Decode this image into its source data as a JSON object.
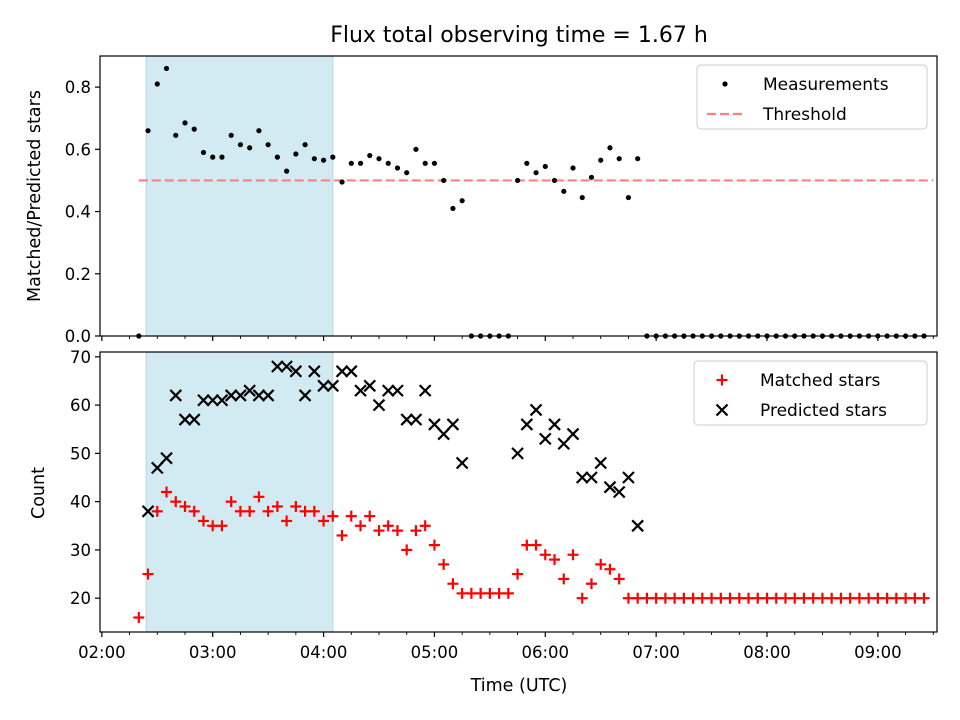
{
  "figure": {
    "title": "Flux total observing time = 1.67 h",
    "xlabel": "Time (UTC)"
  },
  "colors": {
    "measurement": "#000000",
    "threshold": "#ff7f7f",
    "matched": "#ff0000",
    "predicted": "#000000",
    "shading": "#add8e6"
  },
  "chart_data": [
    {
      "type": "scatter",
      "title": "Flux total observing time = 1.67 h",
      "xlabel": "",
      "ylabel": "Matched/Predicted stars",
      "xlim": [
        "02:00",
        "09:30"
      ],
      "ylim": [
        0,
        0.9
      ],
      "yticks": [
        "0.0",
        "0.2",
        "0.4",
        "0.6",
        "0.8"
      ],
      "xticks": [
        "02:00",
        "03:00",
        "04:00",
        "05:00",
        "06:00",
        "07:00",
        "08:00",
        "09:00"
      ],
      "shaded_interval": [
        "02:24",
        "04:05"
      ],
      "legend": {
        "placement": "upper right",
        "entries": [
          "Measurements",
          "Threshold"
        ]
      },
      "threshold": {
        "name": "Threshold",
        "value": 0.5,
        "x": [
          "02:20",
          "09:30"
        ]
      },
      "series": [
        {
          "name": "Measurements",
          "marker": "dot",
          "points": [
            [
              "02:20",
              0.0
            ],
            [
              "02:25",
              0.66
            ],
            [
              "02:30",
              0.81
            ],
            [
              "02:35",
              0.86
            ],
            [
              "02:40",
              0.645
            ],
            [
              "02:45",
              0.685
            ],
            [
              "02:50",
              0.665
            ],
            [
              "02:55",
              0.59
            ],
            [
              "03:00",
              0.575
            ],
            [
              "03:05",
              0.575
            ],
            [
              "03:10",
              0.645
            ],
            [
              "03:15",
              0.615
            ],
            [
              "03:20",
              0.605
            ],
            [
              "03:25",
              0.66
            ],
            [
              "03:30",
              0.615
            ],
            [
              "03:35",
              0.575
            ],
            [
              "03:40",
              0.53
            ],
            [
              "03:45",
              0.585
            ],
            [
              "03:50",
              0.615
            ],
            [
              "03:55",
              0.57
            ],
            [
              "04:00",
              0.565
            ],
            [
              "04:05",
              0.575
            ],
            [
              "04:10",
              0.495
            ],
            [
              "04:15",
              0.555
            ],
            [
              "04:20",
              0.555
            ],
            [
              "04:25",
              0.58
            ],
            [
              "04:30",
              0.57
            ],
            [
              "04:35",
              0.555
            ],
            [
              "04:40",
              0.54
            ],
            [
              "04:45",
              0.525
            ],
            [
              "04:50",
              0.6
            ],
            [
              "04:55",
              0.555
            ],
            [
              "05:00",
              0.555
            ],
            [
              "05:05",
              0.5
            ],
            [
              "05:10",
              0.41
            ],
            [
              "05:15",
              0.435
            ],
            [
              "05:20",
              0.0
            ],
            [
              "05:25",
              0.0
            ],
            [
              "05:30",
              0.0
            ],
            [
              "05:35",
              0.0
            ],
            [
              "05:40",
              0.0
            ],
            [
              "05:45",
              0.5
            ],
            [
              "05:50",
              0.555
            ],
            [
              "05:55",
              0.525
            ],
            [
              "06:00",
              0.545
            ],
            [
              "06:05",
              0.5
            ],
            [
              "06:10",
              0.465
            ],
            [
              "06:15",
              0.54
            ],
            [
              "06:20",
              0.445
            ],
            [
              "06:25",
              0.51
            ],
            [
              "06:30",
              0.565
            ],
            [
              "06:35",
              0.605
            ],
            [
              "06:40",
              0.57
            ],
            [
              "06:45",
              0.445
            ],
            [
              "06:50",
              0.57
            ],
            [
              "06:55",
              0.0
            ],
            [
              "07:00",
              0.0
            ],
            [
              "07:05",
              0.0
            ],
            [
              "07:10",
              0.0
            ],
            [
              "07:15",
              0.0
            ],
            [
              "07:20",
              0.0
            ],
            [
              "07:25",
              0.0
            ],
            [
              "07:30",
              0.0
            ],
            [
              "07:35",
              0.0
            ],
            [
              "07:40",
              0.0
            ],
            [
              "07:45",
              0.0
            ],
            [
              "07:50",
              0.0
            ],
            [
              "07:55",
              0.0
            ],
            [
              "08:00",
              0.0
            ],
            [
              "08:05",
              0.0
            ],
            [
              "08:10",
              0.0
            ],
            [
              "08:15",
              0.0
            ],
            [
              "08:20",
              0.0
            ],
            [
              "08:25",
              0.0
            ],
            [
              "08:30",
              0.0
            ],
            [
              "08:35",
              0.0
            ],
            [
              "08:40",
              0.0
            ],
            [
              "08:45",
              0.0
            ],
            [
              "08:50",
              0.0
            ],
            [
              "08:55",
              0.0
            ],
            [
              "09:00",
              0.0
            ],
            [
              "09:05",
              0.0
            ],
            [
              "09:10",
              0.0
            ],
            [
              "09:15",
              0.0
            ],
            [
              "09:20",
              0.0
            ],
            [
              "09:25",
              0.0
            ]
          ]
        }
      ]
    },
    {
      "type": "scatter",
      "title": "",
      "xlabel": "Time (UTC)",
      "ylabel": "Count",
      "xlim": [
        "02:00",
        "09:30"
      ],
      "ylim": [
        13,
        71
      ],
      "yticks": [
        "20",
        "30",
        "40",
        "50",
        "60",
        "70"
      ],
      "xticks": [
        "02:00",
        "03:00",
        "04:00",
        "05:00",
        "06:00",
        "07:00",
        "08:00",
        "09:00"
      ],
      "shaded_interval": [
        "02:24",
        "04:05"
      ],
      "legend": {
        "placement": "upper right",
        "entries": [
          "Matched stars",
          "Predicted stars"
        ]
      },
      "series": [
        {
          "name": "Matched stars",
          "marker": "plus",
          "points": [
            [
              "02:20",
              16
            ],
            [
              "02:25",
              25
            ],
            [
              "02:30",
              38
            ],
            [
              "02:35",
              42
            ],
            [
              "02:40",
              40
            ],
            [
              "02:45",
              39
            ],
            [
              "02:50",
              38
            ],
            [
              "02:55",
              36
            ],
            [
              "03:00",
              35
            ],
            [
              "03:05",
              35
            ],
            [
              "03:10",
              40
            ],
            [
              "03:15",
              38
            ],
            [
              "03:20",
              38
            ],
            [
              "03:25",
              41
            ],
            [
              "03:30",
              38
            ],
            [
              "03:35",
              39
            ],
            [
              "03:40",
              36
            ],
            [
              "03:45",
              39
            ],
            [
              "03:50",
              38
            ],
            [
              "03:55",
              38
            ],
            [
              "04:00",
              36
            ],
            [
              "04:05",
              37
            ],
            [
              "04:10",
              33
            ],
            [
              "04:15",
              37
            ],
            [
              "04:20",
              35
            ],
            [
              "04:25",
              37
            ],
            [
              "04:30",
              34
            ],
            [
              "04:35",
              35
            ],
            [
              "04:40",
              34
            ],
            [
              "04:45",
              30
            ],
            [
              "04:50",
              34
            ],
            [
              "04:55",
              35
            ],
            [
              "05:00",
              31
            ],
            [
              "05:05",
              27
            ],
            [
              "05:10",
              23
            ],
            [
              "05:15",
              21
            ],
            [
              "05:20",
              21
            ],
            [
              "05:25",
              21
            ],
            [
              "05:30",
              21
            ],
            [
              "05:35",
              21
            ],
            [
              "05:40",
              21
            ],
            [
              "05:45",
              25
            ],
            [
              "05:50",
              31
            ],
            [
              "05:55",
              31
            ],
            [
              "06:00",
              29
            ],
            [
              "06:05",
              28
            ],
            [
              "06:10",
              24
            ],
            [
              "06:15",
              29
            ],
            [
              "06:20",
              20
            ],
            [
              "06:25",
              23
            ],
            [
              "06:30",
              27
            ],
            [
              "06:35",
              26
            ],
            [
              "06:40",
              24
            ],
            [
              "06:45",
              20
            ],
            [
              "06:50",
              20
            ],
            [
              "06:55",
              20
            ],
            [
              "07:00",
              20
            ],
            [
              "07:05",
              20
            ],
            [
              "07:10",
              20
            ],
            [
              "07:15",
              20
            ],
            [
              "07:20",
              20
            ],
            [
              "07:25",
              20
            ],
            [
              "07:30",
              20
            ],
            [
              "07:35",
              20
            ],
            [
              "07:40",
              20
            ],
            [
              "07:45",
              20
            ],
            [
              "07:50",
              20
            ],
            [
              "07:55",
              20
            ],
            [
              "08:00",
              20
            ],
            [
              "08:05",
              20
            ],
            [
              "08:10",
              20
            ],
            [
              "08:15",
              20
            ],
            [
              "08:20",
              20
            ],
            [
              "08:25",
              20
            ],
            [
              "08:30",
              20
            ],
            [
              "08:35",
              20
            ],
            [
              "08:40",
              20
            ],
            [
              "08:45",
              20
            ],
            [
              "08:50",
              20
            ],
            [
              "08:55",
              20
            ],
            [
              "09:00",
              20
            ],
            [
              "09:05",
              20
            ],
            [
              "09:10",
              20
            ],
            [
              "09:15",
              20
            ],
            [
              "09:20",
              20
            ],
            [
              "09:25",
              20
            ]
          ]
        },
        {
          "name": "Predicted stars",
          "marker": "x",
          "points": [
            [
              "02:25",
              38
            ],
            [
              "02:30",
              47
            ],
            [
              "02:35",
              49
            ],
            [
              "02:40",
              62
            ],
            [
              "02:45",
              57
            ],
            [
              "02:50",
              57
            ],
            [
              "02:55",
              61
            ],
            [
              "03:00",
              61
            ],
            [
              "03:05",
              61
            ],
            [
              "03:10",
              62
            ],
            [
              "03:15",
              62
            ],
            [
              "03:20",
              63
            ],
            [
              "03:25",
              62
            ],
            [
              "03:30",
              62
            ],
            [
              "03:35",
              68
            ],
            [
              "03:40",
              68
            ],
            [
              "03:45",
              67
            ],
            [
              "03:50",
              62
            ],
            [
              "03:55",
              67
            ],
            [
              "04:00",
              64
            ],
            [
              "04:05",
              64
            ],
            [
              "04:10",
              67
            ],
            [
              "04:15",
              67
            ],
            [
              "04:20",
              63
            ],
            [
              "04:25",
              64
            ],
            [
              "04:30",
              60
            ],
            [
              "04:35",
              63
            ],
            [
              "04:40",
              63
            ],
            [
              "04:45",
              57
            ],
            [
              "04:50",
              57
            ],
            [
              "04:55",
              63
            ],
            [
              "05:00",
              56
            ],
            [
              "05:05",
              54
            ],
            [
              "05:10",
              56
            ],
            [
              "05:15",
              48
            ],
            [
              "05:45",
              50
            ],
            [
              "05:50",
              56
            ],
            [
              "05:55",
              59
            ],
            [
              "06:00",
              53
            ],
            [
              "06:05",
              56
            ],
            [
              "06:10",
              52
            ],
            [
              "06:15",
              54
            ],
            [
              "06:20",
              45
            ],
            [
              "06:25",
              45
            ],
            [
              "06:30",
              48
            ],
            [
              "06:35",
              43
            ],
            [
              "06:40",
              42
            ],
            [
              "06:45",
              45
            ],
            [
              "06:50",
              35
            ]
          ]
        }
      ]
    }
  ]
}
